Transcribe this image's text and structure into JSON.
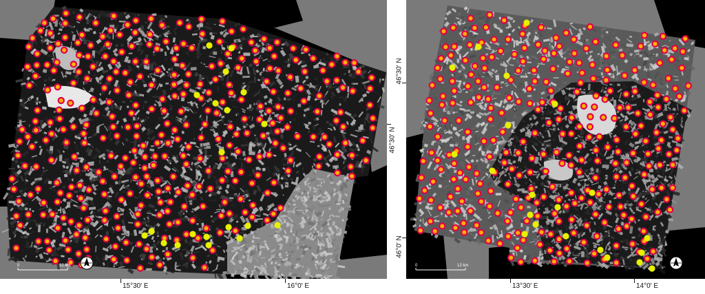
{
  "colors": {
    "background_outside": "#000000",
    "background_land_gray": "#7a7a7a",
    "marker_red_ring": "#e0004a",
    "marker_orange_fill": "#ffb000",
    "marker_yellow": "#e8f000",
    "frame_white": "#ffffff"
  },
  "left_map": {
    "x_axis": {
      "ticks": [
        "15°30′ E",
        "16°0′ E"
      ]
    },
    "y_axis": {
      "ticks": [
        "46°30′ N"
      ]
    },
    "scale_bar": {
      "start_label": "0",
      "end_label": "10 km"
    },
    "north_arrow_label": "N",
    "markers_red_count_shown": "many",
    "markers_yellow_count_shown": "few"
  },
  "right_map": {
    "x_axis": {
      "ticks": [
        "13°30′ E",
        "14°0′ E"
      ]
    },
    "y_axis": {
      "ticks": [
        "46°30′ N",
        "46°0′ N"
      ]
    },
    "scale_bar": {
      "start_label": "0",
      "end_label": "12 km"
    },
    "north_arrow_label": "N",
    "markers_red_count_shown": "many",
    "markers_yellow_count_shown": "few"
  },
  "icons": [
    "north-arrow-icon",
    "scale-bar-icon"
  ]
}
